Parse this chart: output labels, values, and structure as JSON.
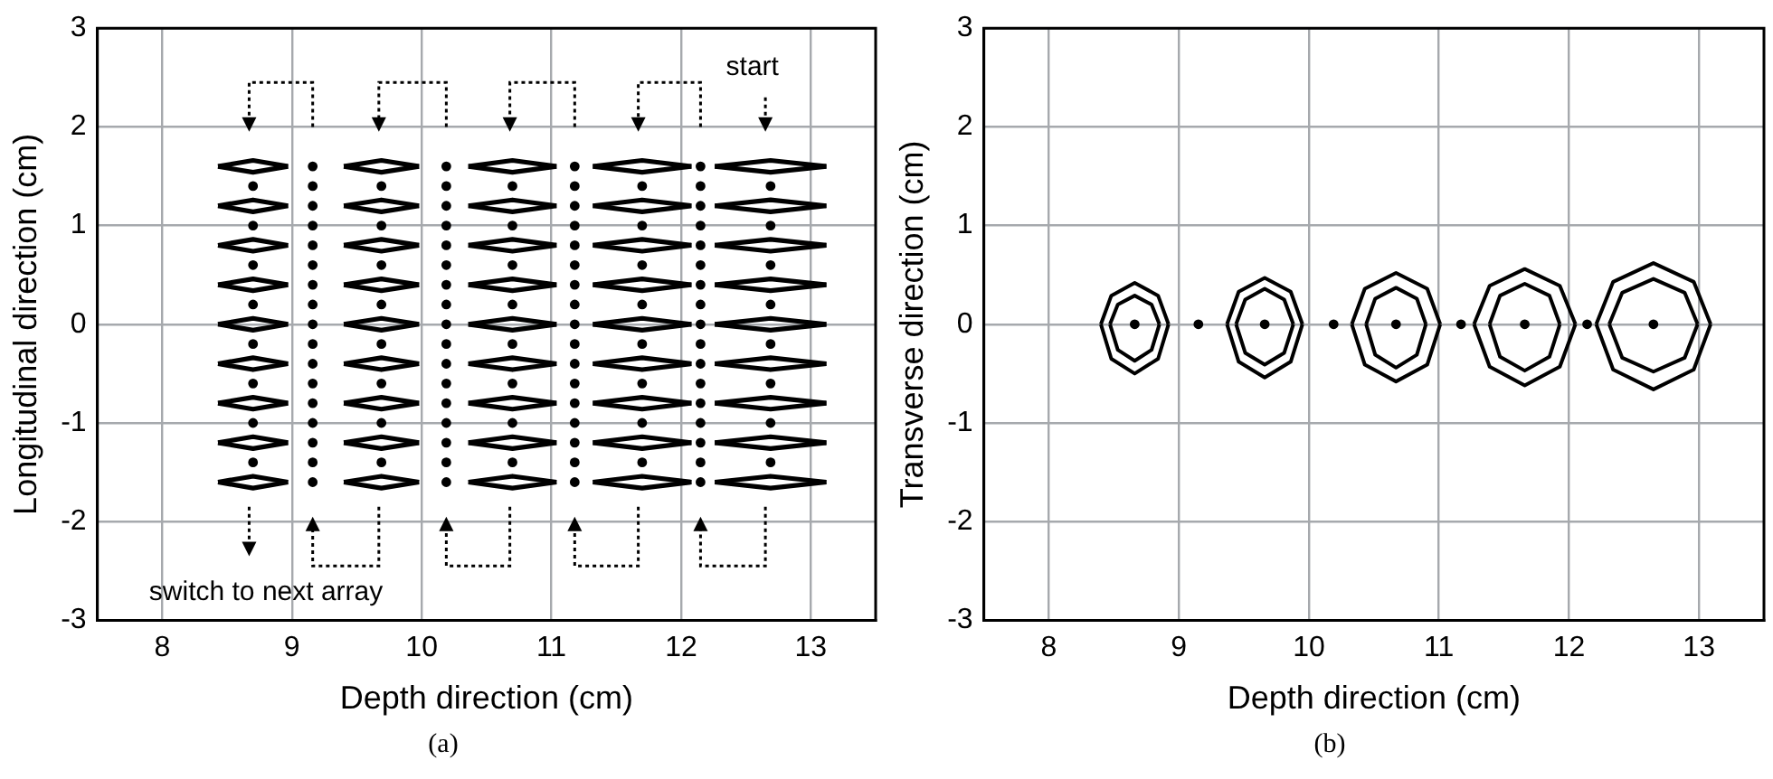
{
  "chart_data": [
    {
      "type": "scatter",
      "xlabel": "Depth direction (cm)",
      "ylabel": "Longitudinal direction (cm)",
      "xlim": [
        7.5,
        13.5
      ],
      "xticks": [
        8,
        9,
        10,
        11,
        12,
        13
      ],
      "ylim": [
        -3,
        3
      ],
      "yticks": [
        -3,
        -2,
        -1,
        0,
        1,
        2,
        3
      ],
      "grid": true,
      "annotations": [
        "start",
        "switch to next array",
        "(a)"
      ],
      "series": [
        {
          "type": "line",
          "marker": "none",
          "color": "#000000",
          "x": [
            8.43,
            8.7,
            8.97
          ],
          "values": [
            1.6,
            1.66,
            1.6
          ]
        },
        {
          "type": "line",
          "marker": "none",
          "color": "#000000",
          "x": [
            8.43,
            8.7,
            8.97
          ],
          "values": [
            1.6,
            1.54,
            1.6
          ]
        },
        {
          "type": "line",
          "marker": "none",
          "color": "#000000",
          "x": [
            8.43,
            8.7,
            8.97
          ],
          "values": [
            1.2,
            1.26,
            1.2
          ]
        },
        {
          "type": "line",
          "marker": "none",
          "color": "#000000",
          "x": [
            8.43,
            8.7,
            8.97
          ],
          "values": [
            1.2,
            1.14,
            1.2
          ]
        },
        {
          "type": "line",
          "marker": "none",
          "color": "#000000",
          "x": [
            8.43,
            8.7,
            8.97
          ],
          "values": [
            0.8,
            0.86,
            0.8
          ]
        },
        {
          "type": "line",
          "marker": "none",
          "color": "#000000",
          "x": [
            8.43,
            8.7,
            8.97
          ],
          "values": [
            0.8,
            0.74,
            0.8
          ]
        },
        {
          "type": "line",
          "marker": "none",
          "color": "#000000",
          "x": [
            8.43,
            8.7,
            8.97
          ],
          "values": [
            0.4,
            0.46,
            0.4
          ]
        },
        {
          "type": "line",
          "marker": "none",
          "color": "#000000",
          "x": [
            8.43,
            8.7,
            8.97
          ],
          "values": [
            0.4,
            0.34,
            0.4
          ]
        },
        {
          "type": "line",
          "marker": "none",
          "color": "#000000",
          "x": [
            8.43,
            8.7,
            8.97
          ],
          "values": [
            0,
            0.06,
            0
          ]
        },
        {
          "type": "line",
          "marker": "none",
          "color": "#000000",
          "x": [
            8.43,
            8.7,
            8.97
          ],
          "values": [
            0,
            -0.06,
            0
          ]
        },
        {
          "type": "line",
          "marker": "none",
          "color": "#000000",
          "x": [
            8.43,
            8.7,
            8.97
          ],
          "values": [
            -0.4,
            -0.34,
            -0.4
          ]
        },
        {
          "type": "line",
          "marker": "none",
          "color": "#000000",
          "x": [
            8.43,
            8.7,
            8.97
          ],
          "values": [
            -0.4,
            -0.46,
            -0.4
          ]
        },
        {
          "type": "line",
          "marker": "none",
          "color": "#000000",
          "x": [
            8.43,
            8.7,
            8.97
          ],
          "values": [
            -0.8,
            -0.74,
            -0.8
          ]
        },
        {
          "type": "line",
          "marker": "none",
          "color": "#000000",
          "x": [
            8.43,
            8.7,
            8.97
          ],
          "values": [
            -0.8,
            -0.86,
            -0.8
          ]
        },
        {
          "type": "line",
          "marker": "none",
          "color": "#000000",
          "x": [
            8.43,
            8.7,
            8.97
          ],
          "values": [
            -1.2,
            -1.14,
            -1.2
          ]
        },
        {
          "type": "line",
          "marker": "none",
          "color": "#000000",
          "x": [
            8.43,
            8.7,
            8.97
          ],
          "values": [
            -1.2,
            -1.26,
            -1.2
          ]
        },
        {
          "type": "line",
          "marker": "none",
          "color": "#000000",
          "x": [
            8.43,
            8.7,
            8.97
          ],
          "values": [
            -1.6,
            -1.54,
            -1.6
          ]
        },
        {
          "type": "line",
          "marker": "none",
          "color": "#000000",
          "x": [
            8.43,
            8.7,
            8.97
          ],
          "values": [
            -1.6,
            -1.66,
            -1.6
          ]
        },
        {
          "type": "line",
          "marker": "none",
          "color": "#000000",
          "x": [
            9.4,
            9.69,
            9.98
          ],
          "values": [
            1.6,
            1.66,
            1.6
          ]
        },
        {
          "type": "line",
          "marker": "none",
          "color": "#000000",
          "x": [
            9.4,
            9.69,
            9.98
          ],
          "values": [
            1.6,
            1.54,
            1.6
          ]
        },
        {
          "type": "line",
          "marker": "none",
          "color": "#000000",
          "x": [
            9.4,
            9.69,
            9.98
          ],
          "values": [
            1.2,
            1.26,
            1.2
          ]
        },
        {
          "type": "line",
          "marker": "none",
          "color": "#000000",
          "x": [
            9.4,
            9.69,
            9.98
          ],
          "values": [
            1.2,
            1.14,
            1.2
          ]
        },
        {
          "type": "line",
          "marker": "none",
          "color": "#000000",
          "x": [
            9.4,
            9.69,
            9.98
          ],
          "values": [
            0.8,
            0.86,
            0.8
          ]
        },
        {
          "type": "line",
          "marker": "none",
          "color": "#000000",
          "x": [
            9.4,
            9.69,
            9.98
          ],
          "values": [
            0.8,
            0.74,
            0.8
          ]
        },
        {
          "type": "line",
          "marker": "none",
          "color": "#000000",
          "x": [
            9.4,
            9.69,
            9.98
          ],
          "values": [
            0.4,
            0.46,
            0.4
          ]
        },
        {
          "type": "line",
          "marker": "none",
          "color": "#000000",
          "x": [
            9.4,
            9.69,
            9.98
          ],
          "values": [
            0.4,
            0.34,
            0.4
          ]
        },
        {
          "type": "line",
          "marker": "none",
          "color": "#000000",
          "x": [
            9.4,
            9.69,
            9.98
          ],
          "values": [
            0,
            0.06,
            0
          ]
        },
        {
          "type": "line",
          "marker": "none",
          "color": "#000000",
          "x": [
            9.4,
            9.69,
            9.98
          ],
          "values": [
            0,
            -0.06,
            0
          ]
        },
        {
          "type": "line",
          "marker": "none",
          "color": "#000000",
          "x": [
            9.4,
            9.69,
            9.98
          ],
          "values": [
            -0.4,
            -0.34,
            -0.4
          ]
        },
        {
          "type": "line",
          "marker": "none",
          "color": "#000000",
          "x": [
            9.4,
            9.69,
            9.98
          ],
          "values": [
            -0.4,
            -0.46,
            -0.4
          ]
        },
        {
          "type": "line",
          "marker": "none",
          "color": "#000000",
          "x": [
            9.4,
            9.69,
            9.98
          ],
          "values": [
            -0.8,
            -0.74,
            -0.8
          ]
        },
        {
          "type": "line",
          "marker": "none",
          "color": "#000000",
          "x": [
            9.4,
            9.69,
            9.98
          ],
          "values": [
            -0.8,
            -0.86,
            -0.8
          ]
        },
        {
          "type": "line",
          "marker": "none",
          "color": "#000000",
          "x": [
            9.4,
            9.69,
            9.98
          ],
          "values": [
            -1.2,
            -1.14,
            -1.2
          ]
        },
        {
          "type": "line",
          "marker": "none",
          "color": "#000000",
          "x": [
            9.4,
            9.69,
            9.98
          ],
          "values": [
            -1.2,
            -1.26,
            -1.2
          ]
        },
        {
          "type": "line",
          "marker": "none",
          "color": "#000000",
          "x": [
            9.4,
            9.69,
            9.98
          ],
          "values": [
            -1.6,
            -1.54,
            -1.6
          ]
        },
        {
          "type": "line",
          "marker": "none",
          "color": "#000000",
          "x": [
            9.4,
            9.69,
            9.98
          ],
          "values": [
            -1.6,
            -1.66,
            -1.6
          ]
        },
        {
          "type": "line",
          "marker": "none",
          "color": "#000000",
          "x": [
            10.36,
            10.7,
            11.04
          ],
          "values": [
            1.6,
            1.66,
            1.6
          ]
        },
        {
          "type": "line",
          "marker": "none",
          "color": "#000000",
          "x": [
            10.36,
            10.7,
            11.04
          ],
          "values": [
            1.6,
            1.54,
            1.6
          ]
        },
        {
          "type": "line",
          "marker": "none",
          "color": "#000000",
          "x": [
            10.36,
            10.7,
            11.04
          ],
          "values": [
            1.2,
            1.26,
            1.2
          ]
        },
        {
          "type": "line",
          "marker": "none",
          "color": "#000000",
          "x": [
            10.36,
            10.7,
            11.04
          ],
          "values": [
            1.2,
            1.14,
            1.2
          ]
        },
        {
          "type": "line",
          "marker": "none",
          "color": "#000000",
          "x": [
            10.36,
            10.7,
            11.04
          ],
          "values": [
            0.8,
            0.86,
            0.8
          ]
        },
        {
          "type": "line",
          "marker": "none",
          "color": "#000000",
          "x": [
            10.36,
            10.7,
            11.04
          ],
          "values": [
            0.8,
            0.74,
            0.8
          ]
        },
        {
          "type": "line",
          "marker": "none",
          "color": "#000000",
          "x": [
            10.36,
            10.7,
            11.04
          ],
          "values": [
            0.4,
            0.46,
            0.4
          ]
        },
        {
          "type": "line",
          "marker": "none",
          "color": "#000000",
          "x": [
            10.36,
            10.7,
            11.04
          ],
          "values": [
            0.4,
            0.34,
            0.4
          ]
        },
        {
          "type": "line",
          "marker": "none",
          "color": "#000000",
          "x": [
            10.36,
            10.7,
            11.04
          ],
          "values": [
            0,
            0.06,
            0
          ]
        },
        {
          "type": "line",
          "marker": "none",
          "color": "#000000",
          "x": [
            10.36,
            10.7,
            11.04
          ],
          "values": [
            0,
            -0.06,
            0
          ]
        },
        {
          "type": "line",
          "marker": "none",
          "color": "#000000",
          "x": [
            10.36,
            10.7,
            11.04
          ],
          "values": [
            -0.4,
            -0.34,
            -0.4
          ]
        },
        {
          "type": "line",
          "marker": "none",
          "color": "#000000",
          "x": [
            10.36,
            10.7,
            11.04
          ],
          "values": [
            -0.4,
            -0.46,
            -0.4
          ]
        },
        {
          "type": "line",
          "marker": "none",
          "color": "#000000",
          "x": [
            10.36,
            10.7,
            11.04
          ],
          "values": [
            -0.8,
            -0.74,
            -0.8
          ]
        },
        {
          "type": "line",
          "marker": "none",
          "color": "#000000",
          "x": [
            10.36,
            10.7,
            11.04
          ],
          "values": [
            -0.8,
            -0.86,
            -0.8
          ]
        },
        {
          "type": "line",
          "marker": "none",
          "color": "#000000",
          "x": [
            10.36,
            10.7,
            11.04
          ],
          "values": [
            -1.2,
            -1.14,
            -1.2
          ]
        },
        {
          "type": "line",
          "marker": "none",
          "color": "#000000",
          "x": [
            10.36,
            10.7,
            11.04
          ],
          "values": [
            -1.2,
            -1.26,
            -1.2
          ]
        },
        {
          "type": "line",
          "marker": "none",
          "color": "#000000",
          "x": [
            10.36,
            10.7,
            11.04
          ],
          "values": [
            -1.6,
            -1.54,
            -1.6
          ]
        },
        {
          "type": "line",
          "marker": "none",
          "color": "#000000",
          "x": [
            10.36,
            10.7,
            11.04
          ],
          "values": [
            -1.6,
            -1.66,
            -1.6
          ]
        },
        {
          "type": "line",
          "marker": "none",
          "color": "#000000",
          "x": [
            11.32,
            11.7,
            12.08
          ],
          "values": [
            1.6,
            1.66,
            1.6
          ]
        },
        {
          "type": "line",
          "marker": "none",
          "color": "#000000",
          "x": [
            11.32,
            11.7,
            12.08
          ],
          "values": [
            1.6,
            1.54,
            1.6
          ]
        },
        {
          "type": "line",
          "marker": "none",
          "color": "#000000",
          "x": [
            11.32,
            11.7,
            12.08
          ],
          "values": [
            1.2,
            1.26,
            1.2
          ]
        },
        {
          "type": "line",
          "marker": "none",
          "color": "#000000",
          "x": [
            11.32,
            11.7,
            12.08
          ],
          "values": [
            1.2,
            1.14,
            1.2
          ]
        },
        {
          "type": "line",
          "marker": "none",
          "color": "#000000",
          "x": [
            11.32,
            11.7,
            12.08
          ],
          "values": [
            0.8,
            0.86,
            0.8
          ]
        },
        {
          "type": "line",
          "marker": "none",
          "color": "#000000",
          "x": [
            11.32,
            11.7,
            12.08
          ],
          "values": [
            0.8,
            0.74,
            0.8
          ]
        },
        {
          "type": "line",
          "marker": "none",
          "color": "#000000",
          "x": [
            11.32,
            11.7,
            12.08
          ],
          "values": [
            0.4,
            0.46,
            0.4
          ]
        },
        {
          "type": "line",
          "marker": "none",
          "color": "#000000",
          "x": [
            11.32,
            11.7,
            12.08
          ],
          "values": [
            0.4,
            0.34,
            0.4
          ]
        },
        {
          "type": "line",
          "marker": "none",
          "color": "#000000",
          "x": [
            11.32,
            11.7,
            12.08
          ],
          "values": [
            0,
            0.06,
            0
          ]
        },
        {
          "type": "line",
          "marker": "none",
          "color": "#000000",
          "x": [
            11.32,
            11.7,
            12.08
          ],
          "values": [
            0,
            -0.06,
            0
          ]
        },
        {
          "type": "line",
          "marker": "none",
          "color": "#000000",
          "x": [
            11.32,
            11.7,
            12.08
          ],
          "values": [
            -0.4,
            -0.34,
            -0.4
          ]
        },
        {
          "type": "line",
          "marker": "none",
          "color": "#000000",
          "x": [
            11.32,
            11.7,
            12.08
          ],
          "values": [
            -0.4,
            -0.46,
            -0.4
          ]
        },
        {
          "type": "line",
          "marker": "none",
          "color": "#000000",
          "x": [
            11.32,
            11.7,
            12.08
          ],
          "values": [
            -0.8,
            -0.74,
            -0.8
          ]
        },
        {
          "type": "line",
          "marker": "none",
          "color": "#000000",
          "x": [
            11.32,
            11.7,
            12.08
          ],
          "values": [
            -0.8,
            -0.86,
            -0.8
          ]
        },
        {
          "type": "line",
          "marker": "none",
          "color": "#000000",
          "x": [
            11.32,
            11.7,
            12.08
          ],
          "values": [
            -1.2,
            -1.14,
            -1.2
          ]
        },
        {
          "type": "line",
          "marker": "none",
          "color": "#000000",
          "x": [
            11.32,
            11.7,
            12.08
          ],
          "values": [
            -1.2,
            -1.26,
            -1.2
          ]
        },
        {
          "type": "line",
          "marker": "none",
          "color": "#000000",
          "x": [
            11.32,
            11.7,
            12.08
          ],
          "values": [
            -1.6,
            -1.54,
            -1.6
          ]
        },
        {
          "type": "line",
          "marker": "none",
          "color": "#000000",
          "x": [
            11.32,
            11.7,
            12.08
          ],
          "values": [
            -1.6,
            -1.66,
            -1.6
          ]
        },
        {
          "type": "line",
          "marker": "none",
          "color": "#000000",
          "x": [
            12.26,
            12.69,
            13.12
          ],
          "values": [
            1.6,
            1.66,
            1.6
          ]
        },
        {
          "type": "line",
          "marker": "none",
          "color": "#000000",
          "x": [
            12.26,
            12.69,
            13.12
          ],
          "values": [
            1.6,
            1.54,
            1.6
          ]
        },
        {
          "type": "line",
          "marker": "none",
          "color": "#000000",
          "x": [
            12.26,
            12.69,
            13.12
          ],
          "values": [
            1.2,
            1.26,
            1.2
          ]
        },
        {
          "type": "line",
          "marker": "none",
          "color": "#000000",
          "x": [
            12.26,
            12.69,
            13.12
          ],
          "values": [
            1.2,
            1.14,
            1.2
          ]
        },
        {
          "type": "line",
          "marker": "none",
          "color": "#000000",
          "x": [
            12.26,
            12.69,
            13.12
          ],
          "values": [
            0.8,
            0.86,
            0.8
          ]
        },
        {
          "type": "line",
          "marker": "none",
          "color": "#000000",
          "x": [
            12.26,
            12.69,
            13.12
          ],
          "values": [
            0.8,
            0.74,
            0.8
          ]
        },
        {
          "type": "line",
          "marker": "none",
          "color": "#000000",
          "x": [
            12.26,
            12.69,
            13.12
          ],
          "values": [
            0.4,
            0.46,
            0.4
          ]
        },
        {
          "type": "line",
          "marker": "none",
          "color": "#000000",
          "x": [
            12.26,
            12.69,
            13.12
          ],
          "values": [
            0.4,
            0.34,
            0.4
          ]
        },
        {
          "type": "line",
          "marker": "none",
          "color": "#000000",
          "x": [
            12.26,
            12.69,
            13.12
          ],
          "values": [
            0,
            0.06,
            0
          ]
        },
        {
          "type": "line",
          "marker": "none",
          "color": "#000000",
          "x": [
            12.26,
            12.69,
            13.12
          ],
          "values": [
            0,
            -0.06,
            0
          ]
        },
        {
          "type": "line",
          "marker": "none",
          "color": "#000000",
          "x": [
            12.26,
            12.69,
            13.12
          ],
          "values": [
            -0.4,
            -0.34,
            -0.4
          ]
        },
        {
          "type": "line",
          "marker": "none",
          "color": "#000000",
          "x": [
            12.26,
            12.69,
            13.12
          ],
          "values": [
            -0.4,
            -0.46,
            -0.4
          ]
        },
        {
          "type": "line",
          "marker": "none",
          "color": "#000000",
          "x": [
            12.26,
            12.69,
            13.12
          ],
          "values": [
            -0.8,
            -0.74,
            -0.8
          ]
        },
        {
          "type": "line",
          "marker": "none",
          "color": "#000000",
          "x": [
            12.26,
            12.69,
            13.12
          ],
          "values": [
            -0.8,
            -0.86,
            -0.8
          ]
        },
        {
          "type": "line",
          "marker": "none",
          "color": "#000000",
          "x": [
            12.26,
            12.69,
            13.12
          ],
          "values": [
            -1.2,
            -1.14,
            -1.2
          ]
        },
        {
          "type": "line",
          "marker": "none",
          "color": "#000000",
          "x": [
            12.26,
            12.69,
            13.12
          ],
          "values": [
            -1.2,
            -1.26,
            -1.2
          ]
        },
        {
          "type": "line",
          "marker": "none",
          "color": "#000000",
          "x": [
            12.26,
            12.69,
            13.12
          ],
          "values": [
            -1.6,
            -1.54,
            -1.6
          ]
        },
        {
          "type": "line",
          "marker": "none",
          "color": "#000000",
          "x": [
            12.26,
            12.69,
            13.12
          ],
          "values": [
            -1.6,
            -1.66,
            -1.6
          ]
        },
        {
          "marker": "circle",
          "color": "#000000",
          "x": [
            8.7,
            8.7,
            8.7,
            8.7,
            8.7,
            8.7,
            8.7,
            8.7,
            9.69,
            9.69,
            9.69,
            9.69,
            9.69,
            9.69,
            9.69,
            9.69,
            10.7,
            10.7,
            10.7,
            10.7,
            10.7,
            10.7,
            10.7,
            10.7,
            11.7,
            11.7,
            11.7,
            11.7,
            11.7,
            11.7,
            11.7,
            11.7,
            12.69,
            12.69,
            12.69,
            12.69,
            12.69,
            12.69,
            12.69,
            12.69,
            9.16,
            9.16,
            9.16,
            9.16,
            9.16,
            9.16,
            9.16,
            9.16,
            9.16,
            9.16,
            9.16,
            9.16,
            9.16,
            9.16,
            9.16,
            9.16,
            9.16,
            10.19,
            10.19,
            10.19,
            10.19,
            10.19,
            10.19,
            10.19,
            10.19,
            10.19,
            10.19,
            10.19,
            10.19,
            10.19,
            10.19,
            10.19,
            10.19,
            10.19,
            11.18,
            11.18,
            11.18,
            11.18,
            11.18,
            11.18,
            11.18,
            11.18,
            11.18,
            11.18,
            11.18,
            11.18,
            11.18,
            11.18,
            11.18,
            11.18,
            11.18,
            12.15,
            12.15,
            12.15,
            12.15,
            12.15,
            12.15,
            12.15,
            12.15,
            12.15,
            12.15,
            12.15,
            12.15,
            12.15,
            12.15,
            12.15,
            12.15,
            12.15
          ],
          "values": [
            1.4,
            1,
            0.6,
            0.2,
            -0.2,
            -0.6,
            -1,
            -1.4,
            1.4,
            1,
            0.6,
            0.2,
            -0.2,
            -0.6,
            -1,
            -1.4,
            1.4,
            1,
            0.6,
            0.2,
            -0.2,
            -0.6,
            -1,
            -1.4,
            1.4,
            1,
            0.6,
            0.2,
            -0.2,
            -0.6,
            -1,
            -1.4,
            1.4,
            1,
            0.6,
            0.2,
            -0.2,
            -0.6,
            -1,
            -1.4,
            1.6,
            1.4,
            1.2,
            1,
            0.8,
            0.6,
            0.4,
            0.2,
            0,
            -0.2,
            -0.4,
            -0.6,
            -0.8,
            -1,
            -1.2,
            -1.4,
            -1.6,
            1.6,
            1.4,
            1.2,
            1,
            0.8,
            0.6,
            0.4,
            0.2,
            0,
            -0.2,
            -0.4,
            -0.6,
            -0.8,
            -1,
            -1.2,
            -1.4,
            -1.6,
            1.6,
            1.4,
            1.2,
            1,
            0.8,
            0.6,
            0.4,
            0.2,
            0,
            -0.2,
            -0.4,
            -0.6,
            -0.8,
            -1,
            -1.2,
            -1.4,
            -1.6,
            1.6,
            1.4,
            1.2,
            1,
            0.8,
            0.6,
            0.4,
            0.2,
            0,
            -0.2,
            -0.4,
            -0.6,
            -0.8,
            -1,
            -1.2,
            -1.4,
            -1.6
          ]
        }
      ]
    },
    {
      "type": "scatter",
      "xlabel": "Depth direction (cm)",
      "ylabel": "Transverse direction (cm)",
      "xlim": [
        7.5,
        13.5
      ],
      "xticks": [
        8,
        9,
        10,
        11,
        12,
        13
      ],
      "ylim": [
        -3,
        3
      ],
      "yticks": [
        -3,
        -2,
        -1,
        0,
        1,
        2,
        3
      ],
      "grid": true,
      "annotations": [
        "(b)"
      ],
      "series": [
        {
          "type": "line",
          "marker": "none",
          "color": "#000000",
          "x": [
            8.4,
            8.48,
            8.66,
            8.84,
            8.92
          ],
          "values": [
            0,
            0.29,
            0.42,
            0.29,
            0
          ]
        },
        {
          "type": "line",
          "marker": "none",
          "color": "#000000",
          "x": [
            8.4,
            8.48,
            8.66,
            8.84,
            8.92
          ],
          "values": [
            0,
            -0.35,
            -0.5,
            -0.35,
            0
          ]
        },
        {
          "type": "line",
          "marker": "none",
          "color": "#000000",
          "x": [
            9.37,
            9.46,
            9.66,
            9.86,
            9.95
          ],
          "values": [
            0,
            0.33,
            0.47,
            0.33,
            0
          ]
        },
        {
          "type": "line",
          "marker": "none",
          "color": "#000000",
          "x": [
            9.37,
            9.46,
            9.66,
            9.86,
            9.95
          ],
          "values": [
            0,
            -0.38,
            -0.54,
            -0.38,
            0
          ]
        },
        {
          "type": "line",
          "marker": "none",
          "color": "#000000",
          "x": [
            10.33,
            10.43,
            10.67,
            10.91,
            11.01
          ],
          "values": [
            0,
            0.36,
            0.52,
            0.36,
            0
          ]
        },
        {
          "type": "line",
          "marker": "none",
          "color": "#000000",
          "x": [
            10.33,
            10.43,
            10.67,
            10.91,
            11.01
          ],
          "values": [
            0,
            -0.41,
            -0.58,
            -0.41,
            0
          ]
        },
        {
          "type": "line",
          "marker": "none",
          "color": "#000000",
          "x": [
            11.27,
            11.39,
            11.66,
            11.93,
            12.05
          ],
          "values": [
            0,
            0.39,
            0.56,
            0.39,
            0
          ]
        },
        {
          "type": "line",
          "marker": "none",
          "color": "#000000",
          "x": [
            11.27,
            11.39,
            11.66,
            11.93,
            12.05
          ],
          "values": [
            0,
            -0.43,
            -0.62,
            -0.43,
            0
          ]
        },
        {
          "type": "line",
          "marker": "none",
          "color": "#000000",
          "x": [
            12.21,
            12.34,
            12.65,
            12.96,
            13.09
          ],
          "values": [
            0,
            0.43,
            0.62,
            0.43,
            0
          ]
        },
        {
          "type": "line",
          "marker": "none",
          "color": "#000000",
          "x": [
            12.21,
            12.34,
            12.65,
            12.96,
            13.09
          ],
          "values": [
            0,
            -0.46,
            -0.66,
            -0.46,
            0
          ]
        },
        {
          "type": "line",
          "marker": "none",
          "color": "#000000",
          "x": [
            8.47,
            8.53,
            8.66,
            8.79,
            8.85
          ],
          "values": [
            0,
            0.2,
            0.29,
            0.2,
            0
          ]
        },
        {
          "type": "line",
          "marker": "none",
          "color": "#000000",
          "x": [
            8.47,
            8.53,
            8.66,
            8.79,
            8.85
          ],
          "values": [
            0,
            -0.26,
            -0.37,
            -0.26,
            0
          ]
        },
        {
          "type": "line",
          "marker": "none",
          "color": "#000000",
          "x": [
            9.44,
            9.51,
            9.66,
            9.81,
            9.88
          ],
          "values": [
            0,
            0.25,
            0.36,
            0.25,
            0
          ]
        },
        {
          "type": "line",
          "marker": "none",
          "color": "#000000",
          "x": [
            9.44,
            9.51,
            9.66,
            9.81,
            9.88
          ],
          "values": [
            0,
            -0.29,
            -0.41,
            -0.29,
            0
          ]
        },
        {
          "type": "line",
          "marker": "none",
          "color": "#000000",
          "x": [
            10.44,
            10.51,
            10.67,
            10.83,
            10.9
          ],
          "values": [
            0,
            0.26,
            0.37,
            0.26,
            0
          ]
        },
        {
          "type": "line",
          "marker": "none",
          "color": "#000000",
          "x": [
            10.44,
            10.51,
            10.67,
            10.83,
            10.9
          ],
          "values": [
            0,
            -0.31,
            -0.44,
            -0.31,
            0
          ]
        },
        {
          "type": "line",
          "marker": "none",
          "color": "#000000",
          "x": [
            11.39,
            11.47,
            11.66,
            11.85,
            11.93
          ],
          "values": [
            0,
            0.29,
            0.41,
            0.29,
            0
          ]
        },
        {
          "type": "line",
          "marker": "none",
          "color": "#000000",
          "x": [
            11.39,
            11.47,
            11.66,
            11.85,
            11.93
          ],
          "values": [
            0,
            -0.33,
            -0.47,
            -0.33,
            0
          ]
        },
        {
          "type": "line",
          "marker": "none",
          "color": "#000000",
          "x": [
            12.31,
            12.41,
            12.65,
            12.89,
            12.99
          ],
          "values": [
            0,
            0.32,
            0.46,
            0.32,
            0
          ]
        },
        {
          "type": "line",
          "marker": "none",
          "color": "#000000",
          "x": [
            12.31,
            12.41,
            12.65,
            12.89,
            12.99
          ],
          "values": [
            0,
            -0.34,
            -0.48,
            -0.34,
            0
          ]
        },
        {
          "marker": "circle",
          "color": "#000000",
          "x": [
            8.66,
            9.15,
            9.66,
            10.19,
            10.67,
            11.17,
            11.66,
            12.14,
            12.65
          ],
          "values": [
            0,
            0,
            0,
            0,
            0,
            0,
            0,
            0,
            0
          ]
        }
      ]
    }
  ]
}
